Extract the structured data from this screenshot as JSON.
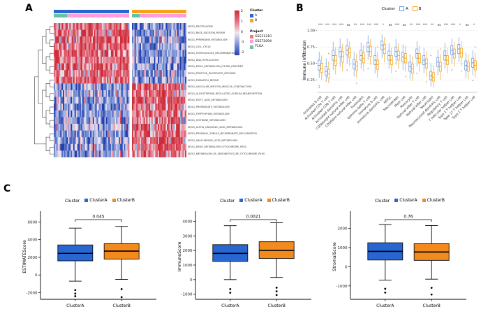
{
  "panels": {
    "a": {
      "label": "A"
    },
    "b": {
      "label": "B"
    },
    "c": {
      "label": "C"
    }
  },
  "chart_data": [
    {
      "id": "kegg-heatmap",
      "type": "heatmap",
      "row_labels": [
        "KEGG_PROTEASOME",
        "KEGG_BASE_EXCISION_REPAIR",
        "KEGG_PYRIMIDINE_METABOLISM",
        "KEGG_CELL_CYCLE",
        "KEGG_HOMOLOGOUS_RECOMBINATION",
        "KEGG_DNA_REPLICATION",
        "KEGG_DRUG_METABOLISM_OTHER_ENZYMES",
        "KEGG_PENTOSE_PHOSPHATE_PATHWAY",
        "KEGG_MISMATCH_REPAIR",
        "KEGG_VASCULAR_SMOOTH_MUSCLE_CONTRACTION",
        "KEGG_ALDOSTERONE_REGULATED_SODIUM_REABSORPTION",
        "KEGG_FATTY_ACID_METABOLISM",
        "KEGG_PROPANOATE_METABOLISM",
        "KEGG_TRYPTOPHAN_METABOLISM",
        "KEGG_HISTIDINE_METABOLISM",
        "KEGG_ALPHA_LINOLENIC_ACID_METABOLISM",
        "KEGG_PROXIMAL_TUBULE_BICARBONATE_RECLAMATION",
        "KEGG_ARACHIDONIC_ACID_METABOLISM",
        "KEGG_DRUG_METABOLISM_CYTOCHROME_P450",
        "KEGG_METABOLISM_OF_XENOBIOTICS_BY_CYTOCHROME_P450"
      ],
      "col_clusters": [
        {
          "name": "A",
          "cols": 58,
          "color": "#2867D2"
        },
        {
          "name": "B",
          "cols": 42,
          "color": "#F5A31A"
        }
      ],
      "project_segments": [
        {
          "name": "TCGA",
          "cols": 10,
          "color": "#67C1A5"
        },
        {
          "name": "GSE72094",
          "cols": 48,
          "color": "#FF9EDB"
        },
        {
          "name": "TCGA",
          "cols": 6,
          "color": "#67C1A5"
        },
        {
          "name": "GSE72094",
          "cols": 36,
          "color": "#FF9EDB"
        }
      ],
      "value_range": [
        -2,
        2
      ],
      "colorbar_ticks": [
        "2",
        "1",
        "0",
        "-1",
        "-2"
      ],
      "colormap_stops": [
        [
          -2,
          "#2340B0"
        ],
        [
          -1,
          "#8098D8"
        ],
        [
          0,
          "#F0E6EE"
        ],
        [
          1,
          "#E57080"
        ],
        [
          2,
          "#CE2D3B"
        ]
      ],
      "row_groups": [
        {
          "rows": [
            0,
            8
          ],
          "cluster_a_mean": 1.15,
          "cluster_b_mean": -0.95
        },
        {
          "rows": [
            9,
            19
          ],
          "cluster_a_mean": -0.9,
          "cluster_b_mean": 1.2
        }
      ],
      "noise_sd": 0.8,
      "legends": {
        "cluster": {
          "title": "Cluster",
          "items": [
            {
              "label": "A",
              "color": "#2867D2"
            },
            {
              "label": "B",
              "color": "#F5A31A"
            }
          ]
        },
        "project": {
          "title": "Project",
          "items": [
            {
              "label": "GSE31210",
              "color": "#F8766D"
            },
            {
              "label": "GSE72094",
              "color": "#FF9EDB"
            },
            {
              "label": "TCGA",
              "color": "#67C1A5"
            }
          ]
        }
      }
    },
    {
      "id": "immune-infiltration-boxplot",
      "type": "boxplot",
      "ylabel": "Immune infiltration",
      "yticks": [
        0.25,
        0.5,
        0.75,
        1.0
      ],
      "ylim": [
        0.06,
        1.04
      ],
      "legend": {
        "title": "Cluster"
      },
      "categories": [
        "Activated B cell",
        "Activated CD4 T cell",
        "Activated CD8 T cell",
        "Activated dendritic cell",
        "CD56bright natural killer cell",
        "CD56dim natural killer cell",
        "Eosinophil",
        "Gamma delta T cell",
        "Immature B cell",
        "Immature dendritic cell",
        "MDSC",
        "Macrophage",
        "Mast cell",
        "Monocyte",
        "Natural killer T cell",
        "Natural killer cell",
        "Neutrophil",
        "Plasmacytoid dendritic cell",
        "Regulatory T cell",
        "T follicular helper cell",
        "Type 1 T helper cell",
        "Type 17 T helper cell",
        "Type 2 T helper cell"
      ],
      "significance": [
        "***",
        "***",
        "***",
        "***",
        "ns",
        "**",
        "***",
        "***",
        "***",
        "*",
        "ns",
        "***",
        "ns",
        "**",
        "***",
        "***",
        "**",
        "ns",
        "***",
        "***",
        "*",
        "ns",
        "*"
      ],
      "series": [
        {
          "name": "A",
          "color": "#6F9BDB",
          "boxes": [
            [
              0.28,
              0.4,
              0.47,
              0.55,
              0.68
            ],
            [
              0.22,
              0.32,
              0.38,
              0.45,
              0.58
            ],
            [
              0.4,
              0.55,
              0.62,
              0.7,
              0.83
            ],
            [
              0.45,
              0.6,
              0.68,
              0.75,
              0.88
            ],
            [
              0.5,
              0.63,
              0.7,
              0.77,
              0.88
            ],
            [
              0.3,
              0.42,
              0.49,
              0.56,
              0.68
            ],
            [
              0.42,
              0.55,
              0.62,
              0.7,
              0.82
            ],
            [
              0.55,
              0.68,
              0.75,
              0.82,
              0.93
            ],
            [
              0.35,
              0.48,
              0.55,
              0.62,
              0.75
            ],
            [
              0.58,
              0.71,
              0.78,
              0.84,
              0.94
            ],
            [
              0.42,
              0.55,
              0.62,
              0.69,
              0.81
            ],
            [
              0.48,
              0.61,
              0.68,
              0.75,
              0.87
            ],
            [
              0.4,
              0.53,
              0.6,
              0.67,
              0.79
            ],
            [
              0.26,
              0.38,
              0.45,
              0.52,
              0.64
            ],
            [
              0.45,
              0.58,
              0.65,
              0.72,
              0.84
            ],
            [
              0.35,
              0.48,
              0.55,
              0.62,
              0.74
            ],
            [
              0.15,
              0.25,
              0.31,
              0.38,
              0.5
            ],
            [
              0.32,
              0.45,
              0.52,
              0.59,
              0.71
            ],
            [
              0.42,
              0.55,
              0.62,
              0.69,
              0.81
            ],
            [
              0.5,
              0.63,
              0.7,
              0.77,
              0.88
            ],
            [
              0.52,
              0.65,
              0.72,
              0.79,
              0.9
            ],
            [
              0.28,
              0.4,
              0.47,
              0.54,
              0.66
            ],
            [
              0.32,
              0.44,
              0.51,
              0.58,
              0.7
            ]
          ],
          "outliers": {
            "0": [
              0.16,
              0.13
            ],
            "4": [
              0.4
            ],
            "7": [
              0.42
            ],
            "11": [
              0.38
            ],
            "14": [
              0.35
            ],
            "16": [
              0.62
            ],
            "19": [
              0.4
            ],
            "22": [
              0.24
            ]
          }
        },
        {
          "name": "B",
          "color": "#F5A31A",
          "boxes": [
            [
              0.25,
              0.36,
              0.42,
              0.5,
              0.62
            ],
            [
              0.2,
              0.28,
              0.34,
              0.41,
              0.53
            ],
            [
              0.33,
              0.47,
              0.54,
              0.62,
              0.75
            ],
            [
              0.38,
              0.52,
              0.6,
              0.68,
              0.8
            ],
            [
              0.46,
              0.59,
              0.66,
              0.73,
              0.84
            ],
            [
              0.28,
              0.4,
              0.46,
              0.53,
              0.65
            ],
            [
              0.38,
              0.51,
              0.58,
              0.66,
              0.78
            ],
            [
              0.48,
              0.61,
              0.68,
              0.76,
              0.87
            ],
            [
              0.28,
              0.41,
              0.48,
              0.55,
              0.68
            ],
            [
              0.52,
              0.65,
              0.72,
              0.79,
              0.9
            ],
            [
              0.35,
              0.48,
              0.55,
              0.62,
              0.74
            ],
            [
              0.42,
              0.55,
              0.62,
              0.69,
              0.81
            ],
            [
              0.38,
              0.51,
              0.58,
              0.65,
              0.77
            ],
            [
              0.23,
              0.35,
              0.42,
              0.49,
              0.61
            ],
            [
              0.38,
              0.51,
              0.58,
              0.65,
              0.77
            ],
            [
              0.3,
              0.43,
              0.5,
              0.57,
              0.69
            ],
            [
              0.13,
              0.23,
              0.29,
              0.36,
              0.48
            ],
            [
              0.25,
              0.38,
              0.45,
              0.52,
              0.64
            ],
            [
              0.35,
              0.48,
              0.55,
              0.62,
              0.74
            ],
            [
              0.45,
              0.58,
              0.65,
              0.72,
              0.83
            ],
            [
              0.46,
              0.59,
              0.66,
              0.73,
              0.84
            ],
            [
              0.26,
              0.38,
              0.45,
              0.52,
              0.64
            ],
            [
              0.28,
              0.4,
              0.47,
              0.54,
              0.66
            ]
          ],
          "outliers": {
            "1": [
              0.65
            ],
            "5": [
              0.2
            ],
            "8": [
              0.75
            ],
            "12": [
              0.3
            ],
            "15": [
              0.22
            ],
            "17": [
              0.72
            ],
            "20": [
              0.38
            ],
            "22": [
              0.75
            ]
          }
        }
      ]
    },
    {
      "id": "estimate-score",
      "type": "boxplot",
      "ylabel": "ESTIMATEScore",
      "yticks": [
        -2000,
        0,
        2000,
        4000,
        6000
      ],
      "ylim": [
        -2750,
        6900
      ],
      "pvalue": "0.045",
      "legend": {
        "title": "Cluster"
      },
      "categories": [
        "ClusterA",
        "ClusterB"
      ],
      "boxes": [
        {
          "label": "ClusterA",
          "color": "#2867D2",
          "whiskers": [
            -700,
            5300
          ],
          "q1": 1600,
          "median": 2450,
          "q3": 3400,
          "outliers": [
            -1700,
            -2100,
            -2400
          ]
        },
        {
          "label": "ClusterB",
          "color": "#F28A1E",
          "whiskers": [
            -500,
            5500
          ],
          "q1": 1800,
          "median": 2700,
          "q3": 3550,
          "outliers": [
            -1600,
            -2500
          ]
        }
      ]
    },
    {
      "id": "immune-score",
      "type": "boxplot",
      "ylabel": "ImmuneScore",
      "yticks": [
        -1000,
        0,
        1000,
        2000,
        3000,
        4000
      ],
      "ylim": [
        -1350,
        4500
      ],
      "pvalue": "0.0021",
      "legend": {
        "title": "Cluster"
      },
      "categories": [
        "ClusterA",
        "ClusterB"
      ],
      "boxes": [
        {
          "label": "ClusterA",
          "color": "#2867D2",
          "whiskers": [
            0,
            3700
          ],
          "q1": 1250,
          "median": 1800,
          "q3": 2400,
          "outliers": [
            -650,
            -900
          ]
        },
        {
          "label": "ClusterB",
          "color": "#F28A1E",
          "whiskers": [
            150,
            3900
          ],
          "q1": 1450,
          "median": 2000,
          "q3": 2600,
          "outliers": [
            -550,
            -800,
            -1050
          ]
        }
      ]
    },
    {
      "id": "stromal-score",
      "type": "boxplot",
      "ylabel": "StromalScore",
      "yticks": [
        -1000,
        0,
        1000,
        2000
      ],
      "ylim": [
        -1700,
        2750
      ],
      "pvalue": "0.76",
      "legend": {
        "title": "Cluster"
      },
      "categories": [
        "ClusterA",
        "ClusterB"
      ],
      "boxes": [
        {
          "label": "ClusterA",
          "color": "#2867D2",
          "whiskers": [
            -700,
            2200
          ],
          "q1": 350,
          "median": 800,
          "q3": 1250,
          "outliers": [
            -1150,
            -1350
          ]
        },
        {
          "label": "ClusterB",
          "color": "#F28A1E",
          "whiskers": [
            -650,
            2150
          ],
          "q1": 330,
          "median": 770,
          "q3": 1200,
          "outliers": [
            -1100,
            -1450
          ]
        }
      ]
    }
  ]
}
